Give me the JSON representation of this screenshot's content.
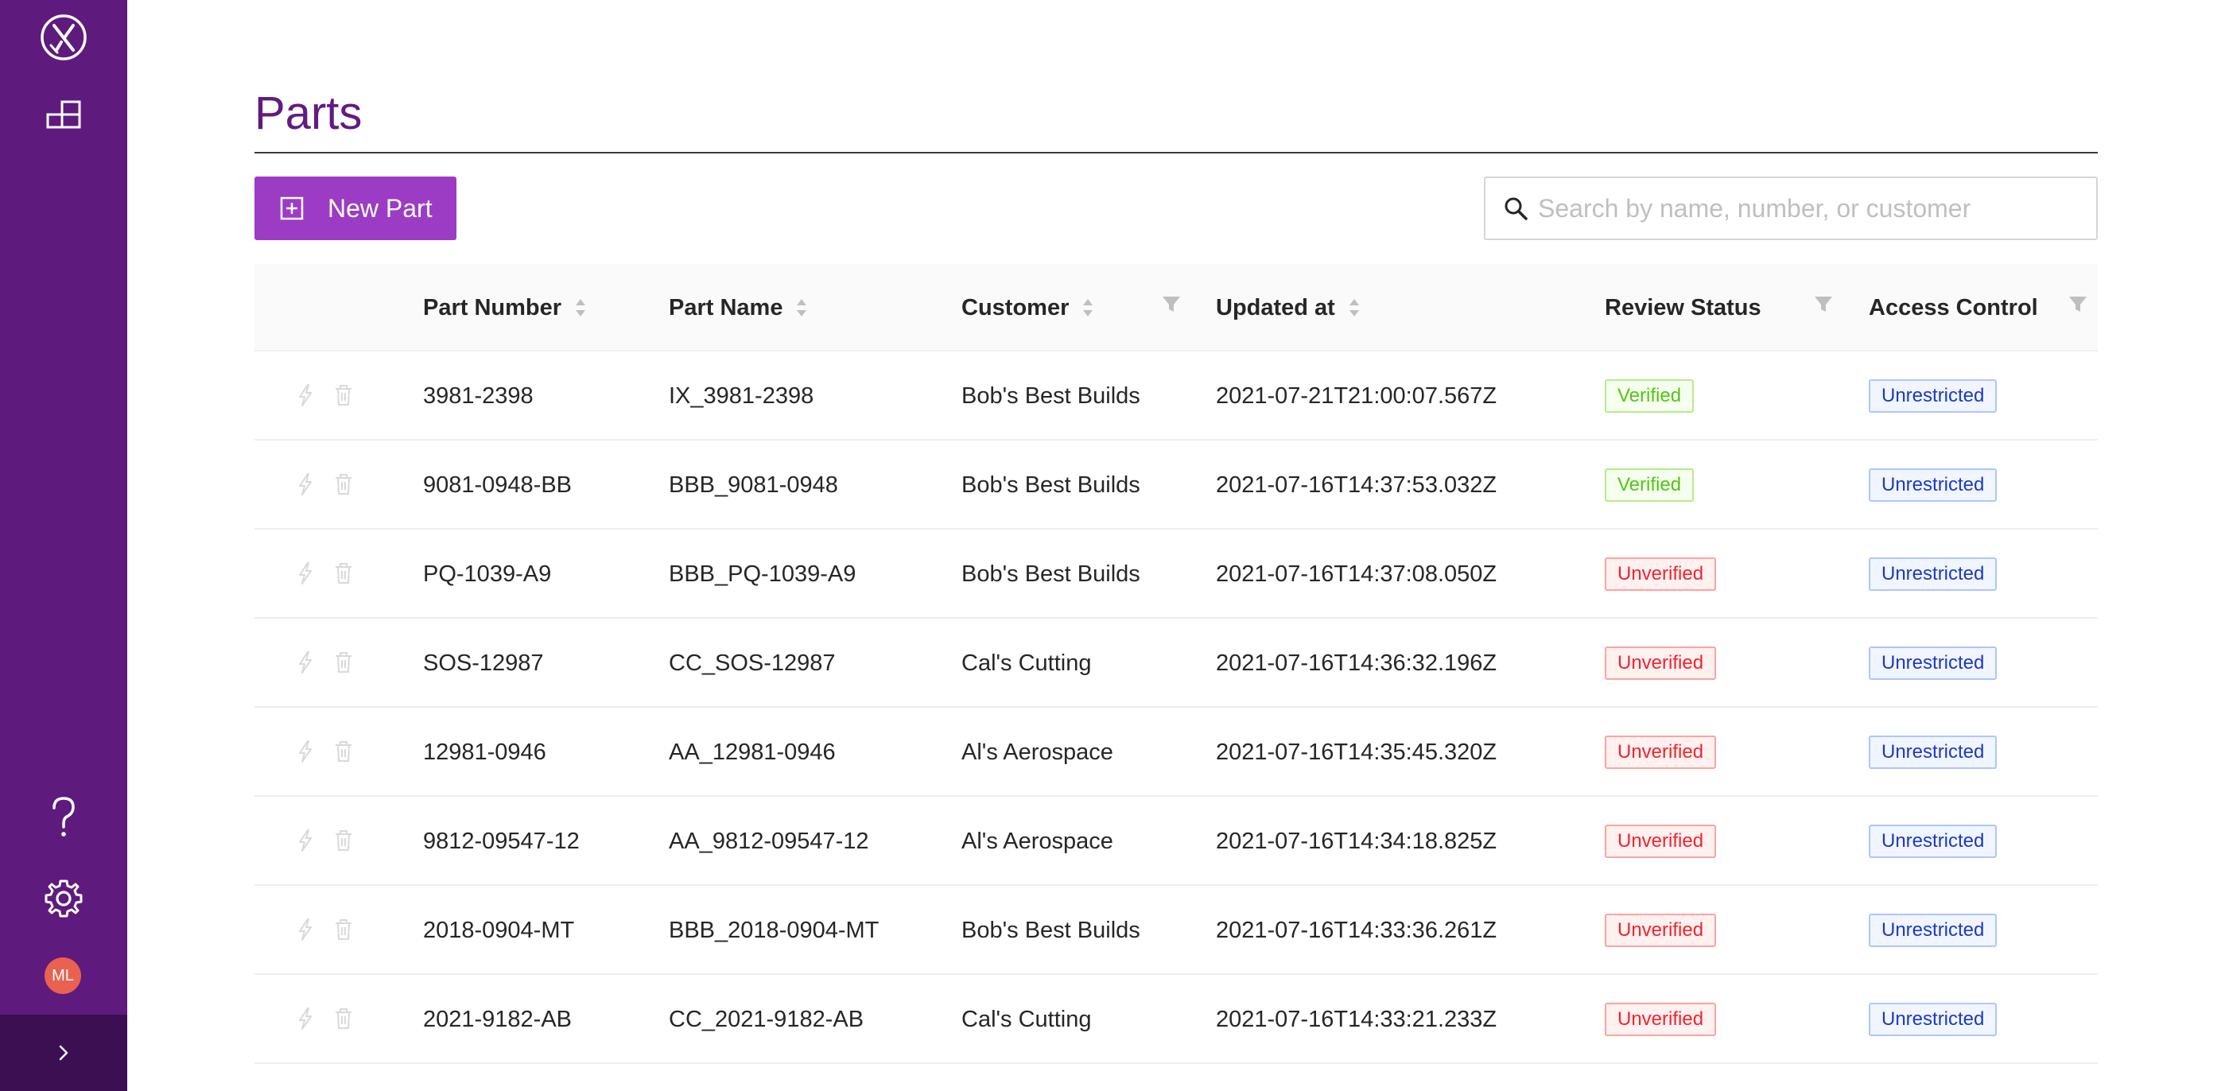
{
  "sidebar": {
    "logo_icon": "x-logo-icon",
    "nav_icon": "parts-grid-icon",
    "help_icon": "question-mark-icon",
    "settings_icon": "gear-icon",
    "avatar_initials": "ML",
    "collapse_icon": "chevron-right-icon",
    "colors": {
      "background": "#5e1a7d",
      "collapse_bar": "#3c0f52",
      "avatar": "#e9614f"
    }
  },
  "page": {
    "title": "Parts",
    "new_part_label": "New Part",
    "search_placeholder": "Search by name, number, or customer",
    "search_value": "",
    "colors": {
      "title": "#621b82",
      "button": "#9c3cc4"
    }
  },
  "table": {
    "columns": [
      {
        "label": "Part Number",
        "sortable": true,
        "filterable": false
      },
      {
        "label": "Part Name",
        "sortable": true,
        "filterable": false
      },
      {
        "label": "Customer",
        "sortable": true,
        "filterable": true
      },
      {
        "label": "Updated at",
        "sortable": true,
        "filterable": false
      },
      {
        "label": "Review Status",
        "sortable": false,
        "filterable": true
      },
      {
        "label": "Access Control",
        "sortable": false,
        "filterable": true
      }
    ],
    "rows": [
      {
        "part_number": "3981-2398",
        "part_name": "IX_3981-2398",
        "customer": "Bob's Best Builds",
        "updated_at": "2021-07-21T21:00:07.567Z",
        "review_status": "Verified",
        "access_control": "Unrestricted"
      },
      {
        "part_number": "9081-0948-BB",
        "part_name": "BBB_9081-0948",
        "customer": "Bob's Best Builds",
        "updated_at": "2021-07-16T14:37:53.032Z",
        "review_status": "Verified",
        "access_control": "Unrestricted"
      },
      {
        "part_number": "PQ-1039-A9",
        "part_name": "BBB_PQ-1039-A9",
        "customer": "Bob's Best Builds",
        "updated_at": "2021-07-16T14:37:08.050Z",
        "review_status": "Unverified",
        "access_control": "Unrestricted"
      },
      {
        "part_number": "SOS-12987",
        "part_name": "CC_SOS-12987",
        "customer": "Cal's Cutting",
        "updated_at": "2021-07-16T14:36:32.196Z",
        "review_status": "Unverified",
        "access_control": "Unrestricted"
      },
      {
        "part_number": "12981-0946",
        "part_name": "AA_12981-0946",
        "customer": "Al's Aerospace",
        "updated_at": "2021-07-16T14:35:45.320Z",
        "review_status": "Unverified",
        "access_control": "Unrestricted"
      },
      {
        "part_number": "9812-09547-12",
        "part_name": "AA_9812-09547-12",
        "customer": "Al's Aerospace",
        "updated_at": "2021-07-16T14:34:18.825Z",
        "review_status": "Unverified",
        "access_control": "Unrestricted"
      },
      {
        "part_number": "2018-0904-MT",
        "part_name": "BBB_2018-0904-MT",
        "customer": "Bob's Best Builds",
        "updated_at": "2021-07-16T14:33:36.261Z",
        "review_status": "Unverified",
        "access_control": "Unrestricted"
      },
      {
        "part_number": "2021-9182-AB",
        "part_name": "CC_2021-9182-AB",
        "customer": "Cal's Cutting",
        "updated_at": "2021-07-16T14:33:21.233Z",
        "review_status": "Unverified",
        "access_control": "Unrestricted"
      }
    ],
    "row_action_icons": [
      "lightning-icon",
      "trash-icon"
    ],
    "status_colors": {
      "Verified": "#52c41a",
      "Unverified": "#f5222d",
      "Unrestricted": "#1d39c4"
    }
  }
}
